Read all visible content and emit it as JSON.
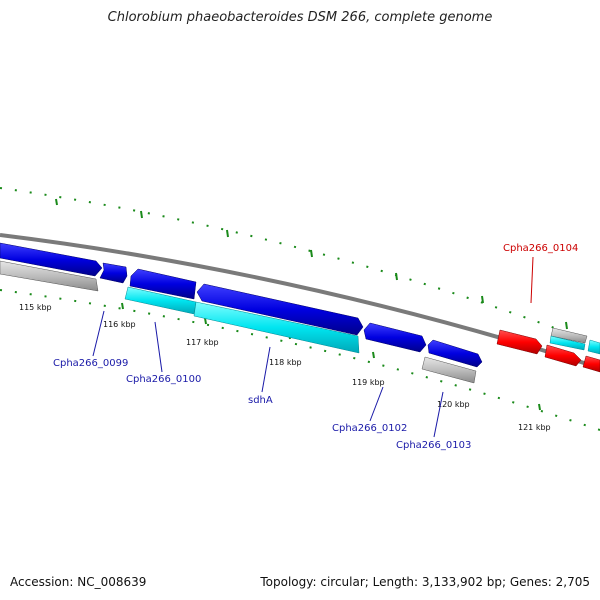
{
  "title": "Chlorobium phaeobacteroides DSM 266, complete genome",
  "footer": {
    "accession": "Accession: NC_008639",
    "summary": "Topology: circular; Length: 3,133,902 bp; Genes: 2,705"
  },
  "scale_labels": [
    "115 kbp",
    "116 kbp",
    "117 kbp",
    "118 kbp",
    "119 kbp",
    "120 kbp",
    "121 kbp"
  ],
  "gene_labels": [
    {
      "text": "Cpha266_0099",
      "color": "#1a1aa8"
    },
    {
      "text": "Cpha266_0100",
      "color": "#1a1aa8"
    },
    {
      "text": "sdhA",
      "color": "#1a1aa8"
    },
    {
      "text": "Cpha266_0102",
      "color": "#1a1aa8"
    },
    {
      "text": "Cpha266_0103",
      "color": "#1a1aa8"
    },
    {
      "text": "Cpha266_0104",
      "color": "#cc0000"
    }
  ],
  "colors": {
    "cds": "#0000e0",
    "rna": "#00e5f0",
    "pseudo": "#bdbdbd",
    "other": "#ff0000",
    "backbone": "#7a7a7a",
    "ticks": "#1a8a1a"
  }
}
